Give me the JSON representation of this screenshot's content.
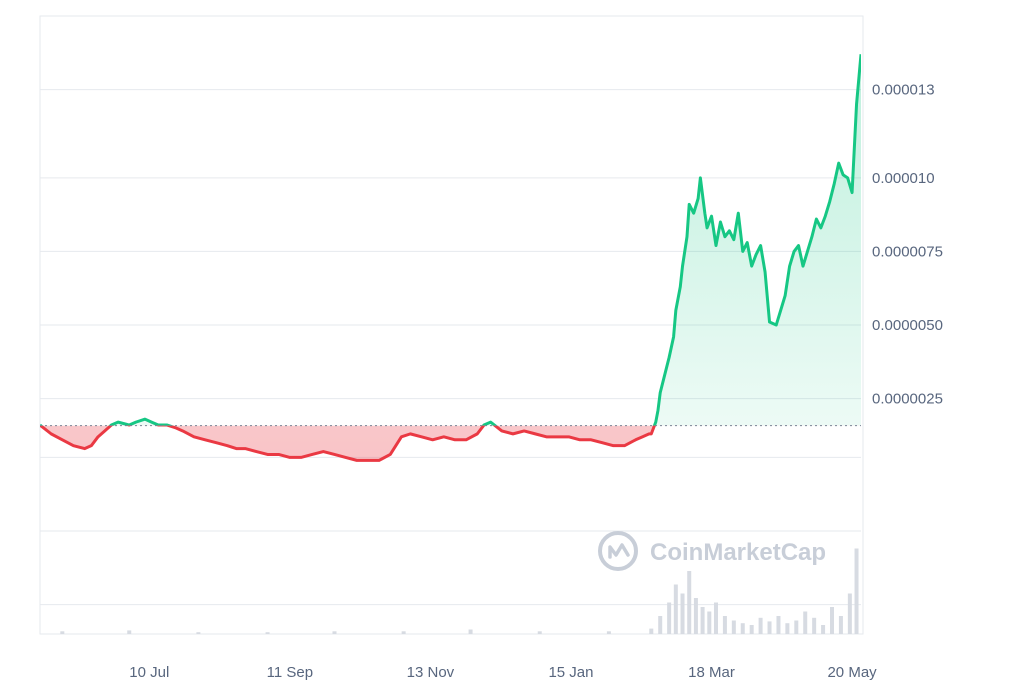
{
  "watermark": {
    "text": "CoinMarketCap",
    "icon": "coinmarketcap-logo-icon"
  },
  "colors": {
    "up": "#16c784",
    "down": "#ea3943",
    "up_fill": "#16c784",
    "down_fill": "#ea3943",
    "grid": "#e6e9ee",
    "baseline": "#7a8395",
    "volume": "#d7dbe2",
    "label": "#58667e"
  },
  "chart_data": {
    "type": "area",
    "title": "",
    "xlabel": "",
    "ylabel": "",
    "grid": true,
    "y_axis_side": "right",
    "xlim": [
      "2023-05-22",
      "2024-05-24"
    ],
    "ylim": [
      -5.5e-06,
      1.55e-05
    ],
    "x_tick_labels": [
      "10 Jul",
      "11 Sep",
      "13 Nov",
      "15 Jan",
      "18 Mar",
      "20 May"
    ],
    "x_tick_dates": [
      "2023-07-10",
      "2023-09-11",
      "2023-11-13",
      "2024-01-15",
      "2024-03-18",
      "2024-05-20"
    ],
    "y_tick_values": [
      2.5e-06,
      5e-06,
      7.5e-06,
      1e-05,
      1.3e-05
    ],
    "y_tick_labels": [
      "0.0000025",
      "0.0000050",
      "0.0000075",
      "0.000010",
      "0.000013"
    ],
    "baseline": 1.58e-06,
    "series": [
      {
        "x": [
          "2023-05-22",
          "2023-05-27",
          "2023-06-01",
          "2023-06-06",
          "2023-06-11",
          "2023-06-14",
          "2023-06-17",
          "2023-06-20",
          "2023-06-23",
          "2023-06-26",
          "2023-07-01",
          "2023-07-04",
          "2023-07-08",
          "2023-07-11",
          "2023-07-14",
          "2023-07-18",
          "2023-07-22",
          "2023-07-25",
          "2023-07-30",
          "2023-08-04",
          "2023-08-09",
          "2023-08-14",
          "2023-08-18",
          "2023-08-22",
          "2023-08-27",
          "2023-09-01",
          "2023-09-06",
          "2023-09-11",
          "2023-09-16",
          "2023-09-21",
          "2023-09-26",
          "2023-10-01",
          "2023-10-06",
          "2023-10-11",
          "2023-10-16",
          "2023-10-21",
          "2023-10-26",
          "2023-10-31",
          "2023-11-04",
          "2023-11-09",
          "2023-11-14",
          "2023-11-19",
          "2023-11-24",
          "2023-11-29",
          "2023-12-04",
          "2023-12-07",
          "2023-12-10",
          "2023-12-15",
          "2023-12-20",
          "2023-12-25",
          "2023-12-30",
          "2024-01-04",
          "2024-01-09",
          "2024-01-14",
          "2024-01-19",
          "2024-01-24",
          "2024-01-29",
          "2024-02-03",
          "2024-02-08",
          "2024-02-13",
          "2024-02-16",
          "2024-02-19",
          "2024-02-20",
          "2024-02-21",
          "2024-02-22",
          "2024-02-23",
          "2024-02-24",
          "2024-02-26",
          "2024-02-28",
          "2024-03-01",
          "2024-03-02",
          "2024-03-04",
          "2024-03-05",
          "2024-03-07",
          "2024-03-08",
          "2024-03-10",
          "2024-03-12",
          "2024-03-13",
          "2024-03-15",
          "2024-03-16",
          "2024-03-18",
          "2024-03-20",
          "2024-03-22",
          "2024-03-24",
          "2024-03-26",
          "2024-03-28",
          "2024-03-30",
          "2024-04-01",
          "2024-04-03",
          "2024-04-05",
          "2024-04-07",
          "2024-04-09",
          "2024-04-11",
          "2024-04-13",
          "2024-04-16",
          "2024-04-18",
          "2024-04-20",
          "2024-04-22",
          "2024-04-24",
          "2024-04-26",
          "2024-04-28",
          "2024-04-30",
          "2024-05-02",
          "2024-05-04",
          "2024-05-06",
          "2024-05-08",
          "2024-05-10",
          "2024-05-12",
          "2024-05-14",
          "2024-05-16",
          "2024-05-18",
          "2024-05-20",
          "2024-05-21",
          "2024-05-22",
          "2024-05-24"
        ],
        "y": [
          1.6e-06,
          1.3e-06,
          1.1e-06,
          9e-07,
          8e-07,
          9e-07,
          1.2e-06,
          1.4e-06,
          1.6e-06,
          1.7e-06,
          1.6e-06,
          1.7e-06,
          1.8e-06,
          1.7e-06,
          1.6e-06,
          1.6e-06,
          1.5e-06,
          1.4e-06,
          1.2e-06,
          1.1e-06,
          1e-06,
          9e-07,
          8e-07,
          8e-07,
          7e-07,
          6e-07,
          6e-07,
          5e-07,
          5e-07,
          6e-07,
          7e-07,
          6e-07,
          5e-07,
          4e-07,
          4e-07,
          4e-07,
          6e-07,
          1.2e-06,
          1.3e-06,
          1.2e-06,
          1.1e-06,
          1.2e-06,
          1.1e-06,
          1.1e-06,
          1.3e-06,
          1.6e-06,
          1.7e-06,
          1.4e-06,
          1.3e-06,
          1.4e-06,
          1.3e-06,
          1.2e-06,
          1.2e-06,
          1.2e-06,
          1.1e-06,
          1.1e-06,
          1e-06,
          9e-07,
          9e-07,
          1.1e-06,
          1.2e-06,
          1.3e-06,
          1.3e-06,
          1.5e-06,
          1.7e-06,
          2.1e-06,
          2.7e-06,
          3.3e-06,
          3.9e-06,
          4.6e-06,
          5.5e-06,
          6.3e-06,
          7e-06,
          8e-06,
          9.1e-06,
          8.8e-06,
          9.3e-06,
          1e-05,
          8.8e-06,
          8.3e-06,
          8.7e-06,
          7.7e-06,
          8.5e-06,
          8e-06,
          8.2e-06,
          7.9e-06,
          8.8e-06,
          7.5e-06,
          7.8e-06,
          7e-06,
          7.4e-06,
          7.7e-06,
          6.8e-06,
          5.1e-06,
          5e-06,
          5.5e-06,
          6e-06,
          7e-06,
          7.5e-06,
          7.7e-06,
          7e-06,
          7.5e-06,
          8e-06,
          8.6e-06,
          8.3e-06,
          8.7e-06,
          9.2e-06,
          9.8e-06,
          1.05e-05,
          1.01e-05,
          1e-05,
          9.5e-06,
          1.1e-05,
          1.25e-05,
          1.42e-05
        ]
      }
    ],
    "volume": {
      "x": [
        "2023-06-01",
        "2023-07-01",
        "2023-08-01",
        "2023-09-01",
        "2023-10-01",
        "2023-11-01",
        "2023-12-01",
        "2024-01-01",
        "2024-02-01",
        "2024-02-20",
        "2024-02-24",
        "2024-02-28",
        "2024-03-02",
        "2024-03-05",
        "2024-03-08",
        "2024-03-11",
        "2024-03-14",
        "2024-03-17",
        "2024-03-20",
        "2024-03-24",
        "2024-03-28",
        "2024-04-01",
        "2024-04-05",
        "2024-04-09",
        "2024-04-13",
        "2024-04-17",
        "2024-04-21",
        "2024-04-25",
        "2024-04-29",
        "2024-05-03",
        "2024-05-07",
        "2024-05-11",
        "2024-05-15",
        "2024-05-19",
        "2024-05-22"
      ],
      "relative": [
        0.03,
        0.04,
        0.02,
        0.02,
        0.03,
        0.03,
        0.05,
        0.03,
        0.03,
        0.06,
        0.2,
        0.35,
        0.55,
        0.45,
        0.7,
        0.4,
        0.3,
        0.25,
        0.35,
        0.2,
        0.15,
        0.12,
        0.1,
        0.18,
        0.14,
        0.2,
        0.12,
        0.15,
        0.25,
        0.18,
        0.1,
        0.3,
        0.2,
        0.45,
        0.95
      ]
    }
  }
}
